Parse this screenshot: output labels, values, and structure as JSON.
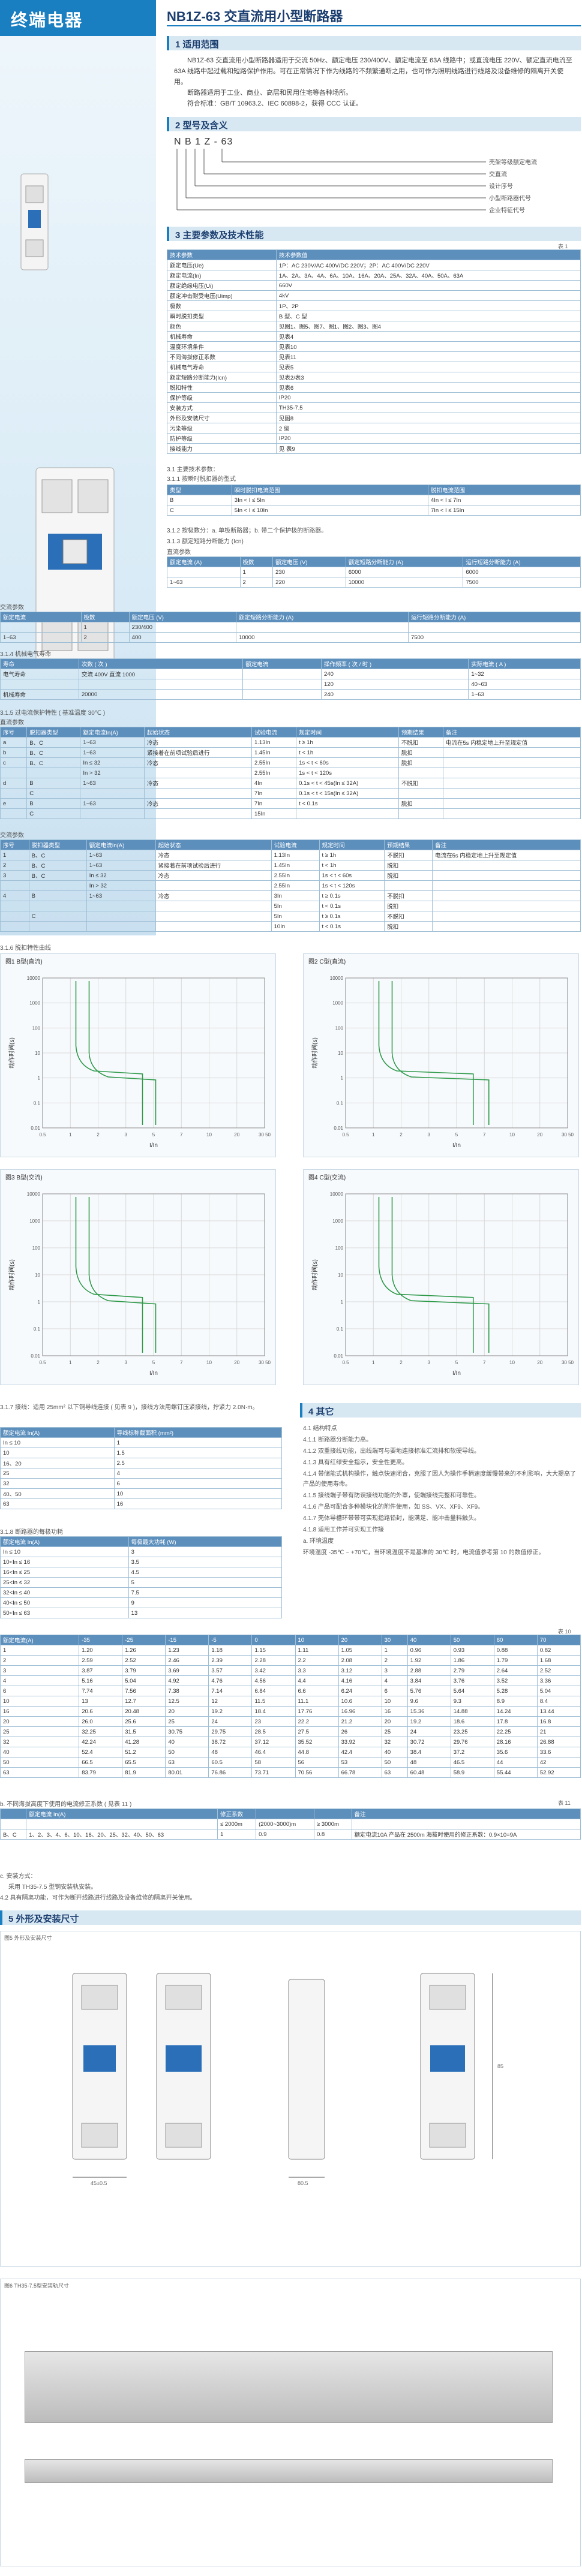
{
  "brand": "终端电器",
  "title": "NB1Z-63 交直流用小型断路器",
  "sections": {
    "s1": "1 适用范围",
    "s2": "2 型号及含义",
    "s3": "3 主要参数及技术性能",
    "s4": "4 其它",
    "s5": "5 外形及安装尺寸"
  },
  "scope_text": [
    "NB1Z-63 交直流用小型断路器适用于交流 50Hz、额定电压 230/400V、额定电流至 63A 线路中；或直流电压 220V、额定直流电流至 63A 线路中起过载和短路保护作用。可在正常情况下作为线路的不频繁通断之用，也可作为照明线路进行线路及设备维修的隔离开关使用。",
    "断路器适用于工业、商业、高层和民用住宅等各种场所。",
    "符合标准：GB/T 10963.2、IEC 60898-2，获得 CCC 认证。"
  ],
  "model": {
    "code": "N B 1 Z - 63",
    "meanings": [
      "壳架等级额定电流",
      "交直流",
      "设计序号",
      "小型断路器代号",
      "企业特征代号"
    ]
  },
  "params_caption": "表 1",
  "params": [
    [
      "技术参数",
      "技术参数值"
    ],
    [
      "额定电压(Ue)",
      "1P：AC 230V/AC 400V/DC 220V；2P：AC 400V/DC 220V"
    ],
    [
      "额定电流(In)",
      "1A、2A、3A、4A、6A、10A、16A、20A、25A、32A、40A、50A、63A"
    ],
    [
      "额定绝缘电压(Ui)",
      "660V"
    ],
    [
      "额定冲击耐受电压(Uimp)",
      "4kV"
    ],
    [
      "极数",
      "1P、2P"
    ],
    [
      "瞬时脱扣类型",
      "B 型、C 型"
    ],
    [
      "颜色",
      "见图1、图5、图7、图1、图2、图3、图4"
    ],
    [
      "机械寿命",
      "见表4"
    ],
    [
      "温度环境条件",
      "见表10"
    ],
    [
      "不同海拔修正系数",
      "见表11"
    ],
    [
      "机械电气寿命",
      "见表5"
    ],
    [
      "额定短路分断能力(Icn)",
      "见表2/表3"
    ],
    [
      "脱扣特性",
      "见表6"
    ],
    [
      "保护等级",
      "IP20"
    ],
    [
      "安装方式",
      "TH35-7.5"
    ],
    [
      "外形及安装尺寸",
      "见图8"
    ],
    [
      "污染等级",
      "2 级"
    ],
    [
      "防护等级",
      "IP20"
    ],
    [
      "接线能力",
      "见 表9"
    ]
  ],
  "sub_311": "3.1 主要技术参数：",
  "sub_312": "3.1.1 按瞬时脱扣器的型式",
  "trip_table": [
    [
      "类型",
      "瞬时脱扣电流范围",
      "脱扣电流范围"
    ],
    [
      "B",
      "3In < I ≤ 5In",
      "4In < I ≤ 7In"
    ],
    [
      "C",
      "5In < I ≤ 10In",
      "7In < I ≤ 15In"
    ]
  ],
  "note_312": "3.1.2 按极数分：a. 单极断路器；b. 带二个保护极的断路器。",
  "note_313": "3.1.3 额定短路分断能力 (Icn)",
  "ac_title": "直流参数",
  "dc_table": [
    [
      "额定电流 (A)",
      "极数",
      "额定电压 (V)",
      "额定短路分断能力 (A)",
      "运行短路分断能力 (A)"
    ],
    [
      "",
      "1",
      "230",
      "6000",
      "6000"
    ],
    [
      "1~63",
      "2",
      "220",
      "10000",
      "7500"
    ]
  ],
  "ac2_title": "交流参数",
  "ac_table": [
    [
      "额定电流",
      "极数",
      "额定电压 (V)",
      "额定短路分断能力 (A)",
      "运行短路分断能力 (A)"
    ],
    [
      "",
      "1",
      "230/400",
      "",
      ""
    ],
    [
      "1~63",
      "2",
      "400",
      "10000",
      "7500"
    ]
  ],
  "mech_title": "3.1.4 机械电气寿命",
  "mech_table": [
    [
      "寿命",
      "次数 ( 次 )",
      "额定电流",
      "操作频率 ( 次 / 时 )",
      "实际电流 ( A )"
    ],
    [
      "电气寿命",
      "交流 400V 直流 1000",
      "",
      "240",
      "1~32"
    ],
    [
      "",
      "",
      "",
      "120",
      "40~63"
    ],
    [
      "机械寿命",
      "20000",
      "",
      "240",
      "1~63"
    ]
  ],
  "trip_title": "3.1.5 过电流保护特性 ( 基准温度 30℃ )",
  "dc_trip_title": "直流参数",
  "dc_trip_table": [
    [
      "序号",
      "脱扣器类型",
      "额定电流In(A)",
      "起始状态",
      "试验电流",
      "规定时间",
      "预期结果",
      "备注"
    ],
    [
      "a",
      "B、C",
      "1~63",
      "冷态",
      "1.13In",
      "t ≥ 1h",
      "不脱扣",
      "电流在5s 内稳定地上升至规定值"
    ],
    [
      "b",
      "B、C",
      "1~63",
      "紧接着在前项试验后进行",
      "1.45In",
      "t < 1h",
      "脱扣",
      ""
    ],
    [
      "c",
      "B、C",
      "In ≤ 32",
      "冷态",
      "2.55In",
      "1s < t < 60s",
      "脱扣",
      ""
    ],
    [
      "",
      "",
      "In > 32",
      "",
      "2.55In",
      "1s < t < 120s",
      "",
      ""
    ],
    [
      "d",
      "B",
      "1~63",
      "冷态",
      "4In",
      "0.1s < t < 45s(In ≤ 32A)",
      "不脱扣",
      ""
    ],
    [
      "",
      "C",
      "",
      "",
      "7In",
      "0.1s < t < 15s(In ≤ 32A)",
      "",
      ""
    ],
    [
      "e",
      "B",
      "1~63",
      "冷态",
      "7In",
      "t < 0.1s",
      "脱扣",
      ""
    ],
    [
      "",
      "C",
      "",
      "",
      "15In",
      "",
      "",
      ""
    ]
  ],
  "ac_trip_title": "交流参数",
  "ac_trip_table": [
    [
      "序号",
      "脱扣器类型",
      "额定电流In(A)",
      "起始状态",
      "试验电流",
      "规定时间",
      "预期结果",
      "备注"
    ],
    [
      "1",
      "B、C",
      "1~63",
      "冷态",
      "1.13In",
      "t ≥ 1h",
      "不脱扣",
      "电流在5s 内稳定地上升至规定值"
    ],
    [
      "2",
      "B、C",
      "1~63",
      "紧接着在前项试验后进行",
      "1.45In",
      "t < 1h",
      "脱扣",
      ""
    ],
    [
      "3",
      "B、C",
      "In ≤ 32",
      "冷态",
      "2.55In",
      "1s < t < 60s",
      "脱扣",
      ""
    ],
    [
      "",
      "",
      "In > 32",
      "",
      "2.55In",
      "1s < t < 120s",
      "",
      ""
    ],
    [
      "4",
      "B",
      "1~63",
      "冷态",
      "3In",
      "t ≥ 0.1s",
      "不脱扣",
      ""
    ],
    [
      "",
      "",
      "",
      "",
      "5In",
      "t < 0.1s",
      "脱扣",
      ""
    ],
    [
      "",
      "C",
      "",
      "",
      "5In",
      "t ≥ 0.1s",
      "不脱扣",
      ""
    ],
    [
      "",
      "",
      "",
      "",
      "10In",
      "t < 0.1s",
      "脱扣",
      ""
    ]
  ],
  "curve_title": "3.1.6 脱扣特性曲线",
  "charts": [
    {
      "caption": "图1 B型(直流)",
      "ylabel": "动作时间(s)",
      "xlabel": "I/In"
    },
    {
      "caption": "图2 C型(直流)",
      "ylabel": "动作时间(s)",
      "xlabel": "I/In"
    },
    {
      "caption": "图3 B型(交流)",
      "ylabel": "动作时间(s)",
      "xlabel": "I/In"
    },
    {
      "caption": "图4 C型(交流)",
      "ylabel": "动作时间(s)",
      "xlabel": "I/In"
    }
  ],
  "x_ticks": [
    "0.5",
    "1",
    "2",
    "3",
    "5",
    "7",
    "10",
    "20",
    "30 50"
  ],
  "y_ticks": [
    "10000",
    "1000",
    "100",
    "10",
    "1",
    "0.1",
    "0.01"
  ],
  "wire_note": "3.1.7 接线：适用 25mm² 以下铜导线连接 ( 见表 9 )，接线方法用螺钉压紧接线，拧紧力 2.0N·m。",
  "wire_table": [
    [
      "额定电流 In(A)",
      "导线标称截面积 (mm²)"
    ],
    [
      "In ≤ 10",
      "1"
    ],
    [
      "10",
      "1.5"
    ],
    [
      "16、20",
      "2.5"
    ],
    [
      "25",
      "4"
    ],
    [
      "32",
      "6"
    ],
    [
      "40、50",
      "10"
    ],
    [
      "63",
      "16"
    ]
  ],
  "power_title": "3.1.8 断路器的每极功耗",
  "power_table": [
    [
      "额定电流 In(A)",
      "每极最大功耗 (W)"
    ],
    [
      "In ≤ 10",
      "3"
    ],
    [
      "10<In ≤ 16",
      "3.5"
    ],
    [
      "16<In ≤ 25",
      "4.5"
    ],
    [
      "25<In ≤ 32",
      "5"
    ],
    [
      "32<In ≤ 40",
      "7.5"
    ],
    [
      "40<In ≤ 50",
      "9"
    ],
    [
      "50<In ≤ 63",
      "13"
    ]
  ],
  "other": [
    "4.1 结构特点",
    "4.1.1 断路器分断能力高。",
    "4.1.2 双重接线功能，出线端可与要地连接标准汇流排和软硬导线。",
    "4.1.3 具有红绿安全指示，安全性更高。",
    "4.1.4 带储能式机构操作，触点快速闭合，克服了因人为操作手柄速度缓慢带来的不利影响，大大提高了产品的使用寿命。",
    "4.1.5 接线端子带有防误接线功能的外罩，使端接线完整和可靠性。",
    "4.1.6 产品可配合多种模块化的附件使用，如 SS、VX、XF9、XF9。",
    "4.1.7 壳体导槽环带带可实现指路铅封，能满足、能冲击量料触头。",
    "4.1.8 适用工作并可实现工作接",
    "a. 环境温度",
    "环境温度 -35℃ ~ +70℃，当环境温度不是基准的 30℃ 时，电流值参考第 10 的数值修正。"
  ],
  "temp_caption": "表 10",
  "temp_table": [
    [
      "额定电流(A)",
      "-35",
      "-25",
      "-15",
      "-5",
      "0",
      "10",
      "20",
      "30",
      "40",
      "50",
      "60",
      "70"
    ],
    [
      "1",
      "1.20",
      "1.26",
      "1.23",
      "1.18",
      "1.15",
      "1.11",
      "1.05",
      "1",
      "0.96",
      "0.93",
      "0.88",
      "0.82"
    ],
    [
      "2",
      "2.59",
      "2.52",
      "2.46",
      "2.39",
      "2.28",
      "2.2",
      "2.08",
      "2",
      "1.92",
      "1.86",
      "1.79",
      "1.68"
    ],
    [
      "3",
      "3.87",
      "3.79",
      "3.69",
      "3.57",
      "3.42",
      "3.3",
      "3.12",
      "3",
      "2.88",
      "2.79",
      "2.64",
      "2.52"
    ],
    [
      "4",
      "5.16",
      "5.04",
      "4.92",
      "4.76",
      "4.56",
      "4.4",
      "4.16",
      "4",
      "3.84",
      "3.76",
      "3.52",
      "3.36"
    ],
    [
      "6",
      "7.74",
      "7.56",
      "7.38",
      "7.14",
      "6.84",
      "6.6",
      "6.24",
      "6",
      "5.76",
      "5.64",
      "5.28",
      "5.04"
    ],
    [
      "10",
      "13",
      "12.7",
      "12.5",
      "12",
      "11.5",
      "11.1",
      "10.6",
      "10",
      "9.6",
      "9.3",
      "8.9",
      "8.4"
    ],
    [
      "16",
      "20.6",
      "20.48",
      "20",
      "19.2",
      "18.4",
      "17.76",
      "16.96",
      "16",
      "15.36",
      "14.88",
      "14.24",
      "13.44"
    ],
    [
      "20",
      "26.0",
      "25.6",
      "25",
      "24",
      "23",
      "22.2",
      "21.2",
      "20",
      "19.2",
      "18.6",
      "17.8",
      "16.8"
    ],
    [
      "25",
      "32.25",
      "31.5",
      "30.75",
      "29.75",
      "28.5",
      "27.5",
      "26",
      "25",
      "24",
      "23.25",
      "22.25",
      "21"
    ],
    [
      "32",
      "42.24",
      "41.28",
      "40",
      "38.72",
      "37.12",
      "35.52",
      "33.92",
      "32",
      "30.72",
      "29.76",
      "28.16",
      "26.88"
    ],
    [
      "40",
      "52.4",
      "51.2",
      "50",
      "48",
      "46.4",
      "44.8",
      "42.4",
      "40",
      "38.4",
      "37.2",
      "35.6",
      "33.6"
    ],
    [
      "50",
      "66.5",
      "65.5",
      "63",
      "60.5",
      "58",
      "56",
      "53",
      "50",
      "48",
      "46.5",
      "44",
      "42"
    ],
    [
      "63",
      "83.79",
      "81.9",
      "80.01",
      "76.86",
      "73.71",
      "70.56",
      "66.78",
      "63",
      "60.48",
      "58.9",
      "55.44",
      "52.92"
    ]
  ],
  "alt_title": "b. 不同海拔高度下使用的电流修正系数 ( 见表 11 )",
  "alt_caption": "表 11",
  "alt_table": [
    [
      "",
      "额定电流 In(A)",
      "修正系数",
      "",
      "",
      "备注"
    ],
    [
      "",
      "",
      "≤ 2000m",
      "(2000~3000)m",
      "≥ 3000m",
      ""
    ],
    [
      "B、C",
      "1、2、3、4、6、10、16、20、25、32、40、50、63",
      "1",
      "0.9",
      "0.8",
      "额定电流10A 产品在 2500m 海拔时使用的修正系数：0.9×10=9A"
    ]
  ],
  "install_notes": [
    "c. 安装方式：",
    "采用 TH35-7.5 型钢安装轨安装。",
    "4.2 具有隔离功能，可作为断开线路进行线路及设备维修的隔离开关使用。"
  ],
  "fig5": "图5 外形及安装尺寸",
  "fig6": "图6 TH35-7.5型安装轨尺寸",
  "dims": [
    "45±0.5",
    "80.5",
    "85"
  ],
  "colors": {
    "accent": "#1a7fc1",
    "header": "#5d8fbd",
    "curve": "#2f9a4a"
  }
}
